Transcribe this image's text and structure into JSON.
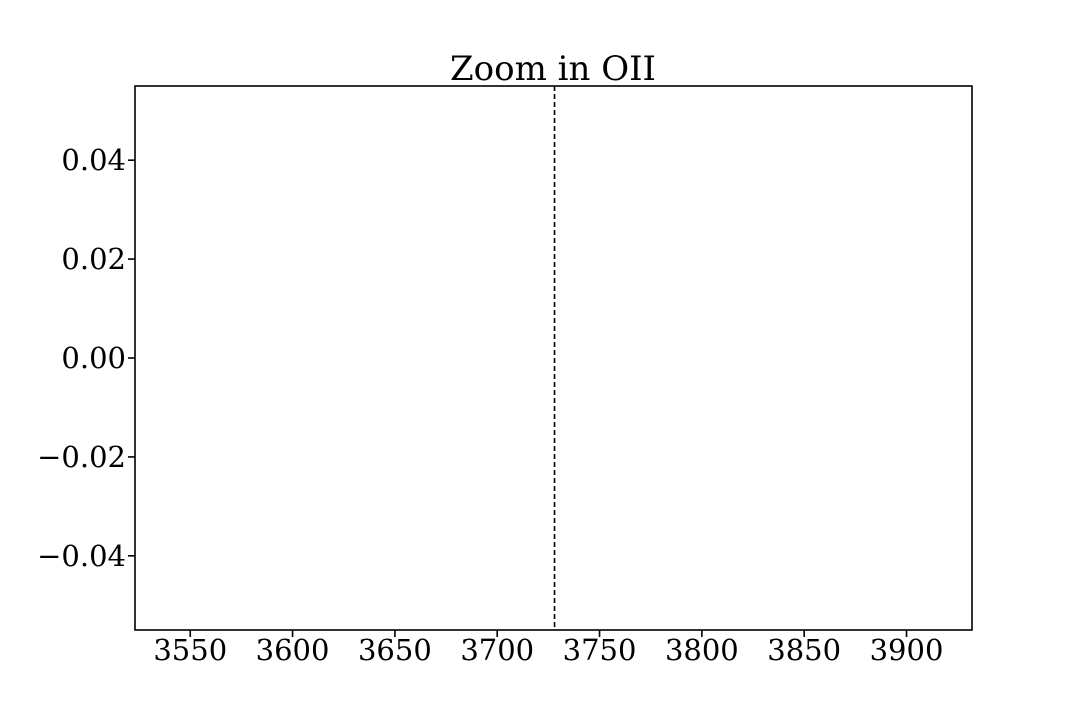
{
  "chart_data": {
    "type": "line",
    "title": "Zoom in OII",
    "xlabel": "",
    "ylabel": "",
    "xlim": [
      3523,
      3932
    ],
    "ylim": [
      -0.055,
      0.055
    ],
    "x_ticks": [
      3550,
      3600,
      3650,
      3700,
      3750,
      3800,
      3850,
      3900
    ],
    "x_tick_labels": [
      "3550",
      "3600",
      "3650",
      "3700",
      "3750",
      "3800",
      "3850",
      "3900"
    ],
    "y_ticks": [
      0.04,
      0.02,
      0.0,
      -0.02,
      -0.04
    ],
    "y_tick_labels": [
      "0.04",
      "0.02",
      "0.00",
      "−0.02",
      "−0.04"
    ],
    "vertical_lines": [
      {
        "x": 3728,
        "style": "dashed",
        "color": "#000000"
      }
    ],
    "series": [],
    "grid": false,
    "legend": "none"
  }
}
